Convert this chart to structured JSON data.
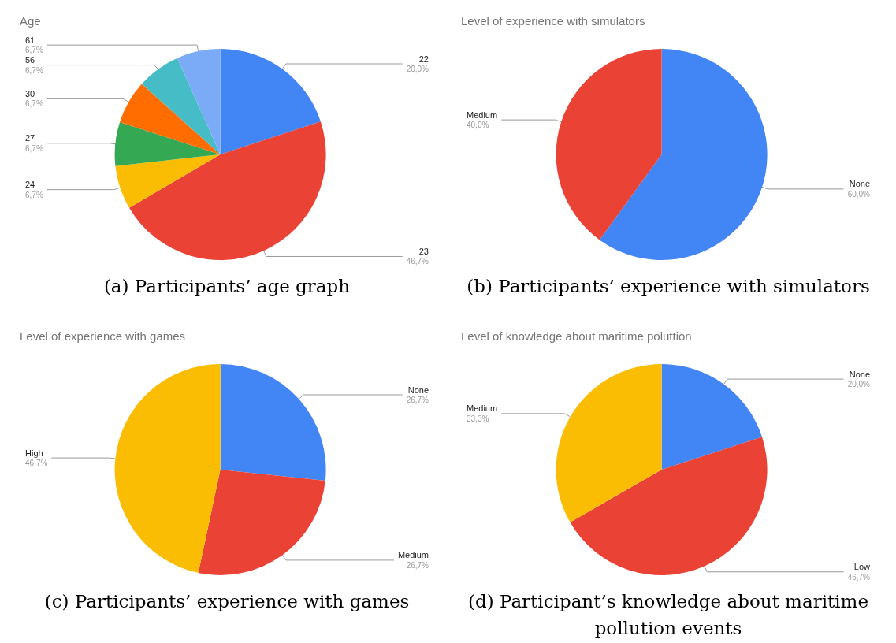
{
  "chart_data": [
    {
      "type": "pie",
      "title": "Age",
      "categories": [
        "22",
        "23",
        "24",
        "27",
        "30",
        "56",
        "61"
      ],
      "values": [
        20.0,
        46.7,
        6.7,
        6.7,
        6.7,
        6.7,
        6.7
      ],
      "value_labels": [
        "20,0%",
        "46,7%",
        "6,7%",
        "6,7%",
        "6,7%",
        "6,7%",
        "6,7%"
      ],
      "colors": [
        "#4285f4",
        "#ea4335",
        "#fbbc04",
        "#34a853",
        "#ff6d01",
        "#46bdc6",
        "#7baaf7"
      ],
      "annotations": [
        "(a) Participants’ age graph"
      ]
    },
    {
      "type": "pie",
      "title": "Level of experience with simulators",
      "categories": [
        "None",
        "Medium"
      ],
      "values": [
        60.0,
        40.0
      ],
      "value_labels": [
        "60,0%",
        "40,0%"
      ],
      "colors": [
        "#4285f4",
        "#ea4335"
      ],
      "annotations": [
        "(b) Participants’ experience with simulators"
      ]
    },
    {
      "type": "pie",
      "title": "Level of experience with games",
      "categories": [
        "None",
        "Medium",
        "High"
      ],
      "values": [
        26.7,
        26.7,
        46.7
      ],
      "value_labels": [
        "26,7%",
        "26,7%",
        "46,7%"
      ],
      "colors": [
        "#4285f4",
        "#ea4335",
        "#fbbc04"
      ],
      "annotations": [
        "(c) Participants’ experience with games"
      ]
    },
    {
      "type": "pie",
      "title": "Level of knowledge about maritime poluttion",
      "categories": [
        "None",
        "Low",
        "Medium"
      ],
      "values": [
        20.0,
        46.7,
        33.3
      ],
      "value_labels": [
        "20,0%",
        "46,7%",
        "33,3%"
      ],
      "colors": [
        "#4285f4",
        "#ea4335",
        "#fbbc04"
      ],
      "annotations": [
        "(d) Participant’s knowledge about maritime pollution events"
      ]
    }
  ]
}
